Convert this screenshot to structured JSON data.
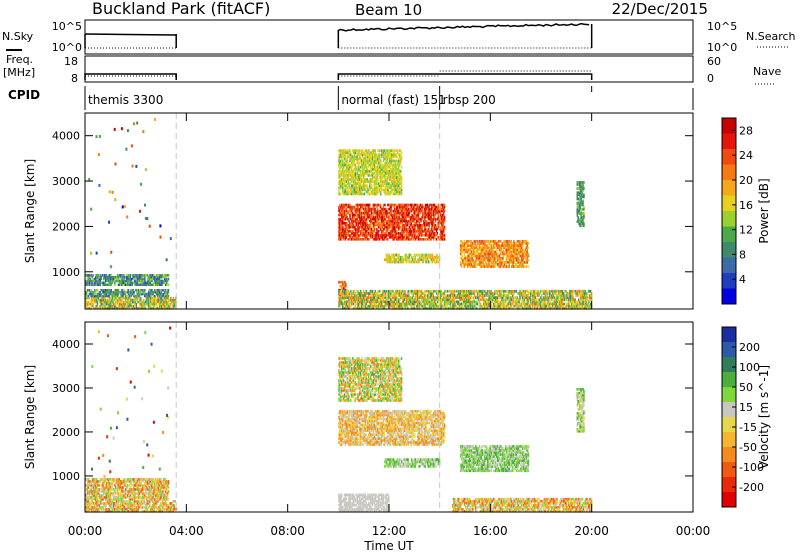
{
  "header": {
    "title": "Buckland Park (fitACF)",
    "beam": "Beam 10",
    "date": "22/Dec/2015"
  },
  "panels": {
    "nsky_label": "N.Sky",
    "nsky_ticks": [
      "10^5",
      "10^0"
    ],
    "nsky_right_ticks": [
      "10^5",
      "10^0"
    ],
    "nsearch_label": "N.Search",
    "freq_label": "Freq.",
    "freq_unit": "[MHz]",
    "freq_ticks": [
      "18",
      "8"
    ],
    "nave_ticks": [
      "60",
      "0"
    ],
    "nave_label": "Nave",
    "cpid_label": "CPID",
    "cpid_segments": [
      {
        "label": "themis 3300",
        "start": 0.0,
        "end": 3.6
      },
      {
        "label": "normal (fast) 151",
        "start": 10.0,
        "end": 14.0
      },
      {
        "label": "rbsp 200",
        "start": 14.0,
        "end": 20.0
      }
    ]
  },
  "chart_data": [
    {
      "type": "heatmap",
      "name": "power",
      "ylabel": "Slant Range [km]",
      "xlabel": "",
      "xlim": [
        0,
        24
      ],
      "ylim": [
        180,
        4500
      ],
      "yticks": [
        "1000",
        "2000",
        "3000",
        "4000"
      ],
      "xticks": [
        "00:00",
        "04:00",
        "08:00",
        "12:00",
        "16:00",
        "20:00",
        "00:00"
      ],
      "colorbar": {
        "label": "Power [dB]",
        "ticks": [
          "4",
          "8",
          "12",
          "16",
          "20",
          "24",
          "28"
        ],
        "range": [
          0,
          30
        ],
        "colors": [
          "#0000e0",
          "#1f3fc0",
          "#3d6aa8",
          "#3f8a6a",
          "#4aaa4a",
          "#9bd12e",
          "#e6d21e",
          "#f5a81a",
          "#f57a12",
          "#f04a0e",
          "#e3160a",
          "#c80000"
        ]
      },
      "regions": [
        {
          "t0": 0.0,
          "t1": 3.6,
          "r0": 180,
          "r1": 450,
          "level": [
            8,
            22
          ]
        },
        {
          "t0": 0.0,
          "t1": 3.3,
          "r0": 450,
          "r1": 620,
          "level": [
            4,
            14
          ]
        },
        {
          "t0": 0.0,
          "t1": 3.3,
          "r0": 700,
          "r1": 950,
          "level": [
            4,
            14
          ]
        },
        {
          "t0": 10.0,
          "t1": 14.2,
          "r0": 1700,
          "r1": 2500,
          "level": [
            20,
            30
          ]
        },
        {
          "t0": 10.0,
          "t1": 10.3,
          "r0": 400,
          "r1": 800,
          "level": [
            18,
            28
          ]
        },
        {
          "t0": 11.8,
          "t1": 14.0,
          "r0": 1200,
          "r1": 1400,
          "level": [
            12,
            20
          ]
        },
        {
          "t0": 14.8,
          "t1": 17.5,
          "r0": 1100,
          "r1": 1700,
          "level": [
            16,
            24
          ]
        },
        {
          "t0": 10.0,
          "t1": 20.0,
          "r0": 180,
          "r1": 600,
          "level": [
            8,
            22
          ]
        },
        {
          "t0": 10.0,
          "t1": 12.5,
          "r0": 2700,
          "r1": 3700,
          "level": [
            12,
            18
          ]
        },
        {
          "t0": 19.4,
          "t1": 19.7,
          "r0": 2000,
          "r1": 3000,
          "level": [
            6,
            14
          ]
        }
      ]
    },
    {
      "type": "heatmap",
      "name": "velocity",
      "ylabel": "Slant Range [km]",
      "xlabel": "Time UT",
      "xlim": [
        0,
        24
      ],
      "ylim": [
        180,
        4500
      ],
      "yticks": [
        "1000",
        "2000",
        "3000",
        "4000"
      ],
      "xticks": [
        "00:00",
        "04:00",
        "08:00",
        "12:00",
        "16:00",
        "20:00",
        "00:00"
      ],
      "colorbar": {
        "label": "Velocity [m s^-1]",
        "ticks": [
          "200",
          "100",
          "50",
          "15",
          "-15",
          "-50",
          "-100",
          "-200"
        ],
        "colors": [
          "#1a2ea0",
          "#2a5aa8",
          "#2f7d5a",
          "#4caf3c",
          "#7fd83a",
          "#c8c8c0",
          "#e6d84a",
          "#f5b530",
          "#f58a1e",
          "#f05a12",
          "#e82a0a",
          "#e00000"
        ]
      },
      "regions": [
        {
          "t0": 0.0,
          "t1": 3.6,
          "r0": 180,
          "r1": 450,
          "level": [
            4,
            9
          ]
        },
        {
          "t0": 0.0,
          "t1": 3.3,
          "r0": 450,
          "r1": 950,
          "level": [
            4,
            9
          ]
        },
        {
          "t0": 10.0,
          "t1": 14.2,
          "r0": 1700,
          "r1": 2500,
          "level": [
            5,
            8
          ]
        },
        {
          "t0": 11.8,
          "t1": 14.0,
          "r0": 1200,
          "r1": 1400,
          "level": [
            3,
            5
          ]
        },
        {
          "t0": 14.8,
          "t1": 17.5,
          "r0": 1100,
          "r1": 1700,
          "level": [
            3,
            5
          ]
        },
        {
          "t0": 10.0,
          "t1": 12.0,
          "r0": 180,
          "r1": 600,
          "level": [
            5,
            5
          ]
        },
        {
          "t0": 14.5,
          "t1": 20.0,
          "r0": 180,
          "r1": 500,
          "level": [
            4,
            9
          ]
        },
        {
          "t0": 10.0,
          "t1": 12.5,
          "r0": 2700,
          "r1": 3700,
          "level": [
            3,
            8
          ]
        },
        {
          "t0": 19.4,
          "t1": 19.7,
          "r0": 2000,
          "r1": 3000,
          "level": [
            3,
            6
          ]
        }
      ]
    }
  ]
}
